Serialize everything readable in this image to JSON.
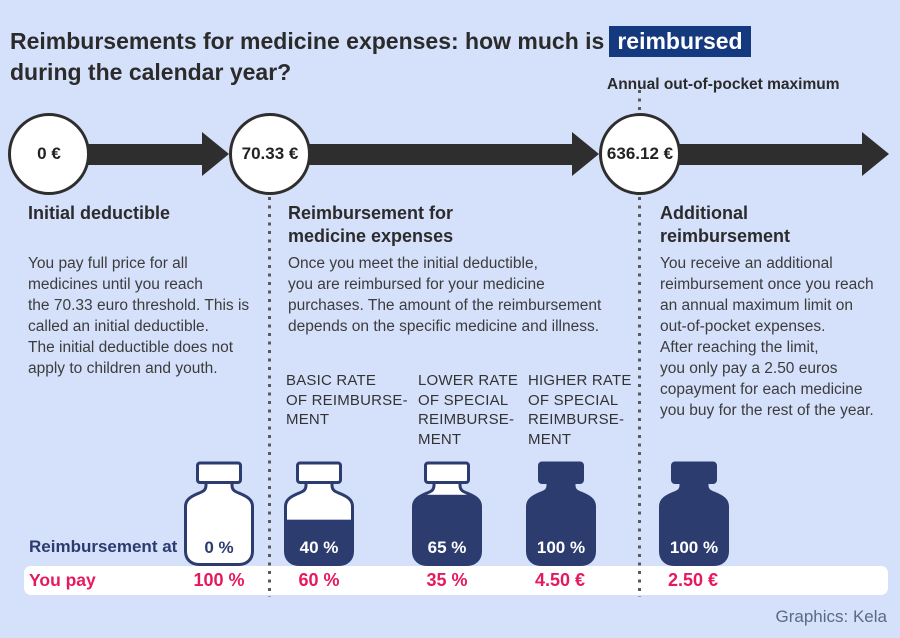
{
  "colors": {
    "bg": "#d5e0fa",
    "navy": "#2d3c6f",
    "highlight": "#15397e",
    "ink": "#2b2b2b",
    "body": "#3c3c3c",
    "pink": "#e6195e",
    "arrow": "#2e2e2e",
    "dots": "#5a5a5a",
    "credit": "#5b6a84"
  },
  "title": {
    "line1_pre": "Reimbursements for medicine expenses: how much is",
    "line1_highlight": "reimbursed",
    "line2": "during the calendar year?"
  },
  "annual_max_label": "Annual out-of-pocket maximum",
  "timeline": {
    "points": [
      "0 €",
      "70.33 €",
      "636.12 €"
    ]
  },
  "sections": [
    {
      "heading": "Initial deductible",
      "body": "You pay full price for all\nmedicines until you reach\nthe 70.33 euro threshold. This is\ncalled an initial deductible.\nThe initial deductible does not\napply to children and youth."
    },
    {
      "heading": "Reimbursement for\nmedicine expenses",
      "body": "Once you meet the initial deductible,\nyou are reimbursed for your medicine\npurchases. The amount of the reimbursement\ndepends on the specific medicine and illness."
    },
    {
      "heading": "Additional\nreimbursement",
      "body": "You receive an additional\nreimbursement once you reach\nan annual maximum limit on\nout-of-pocket expenses.\nAfter reaching the limit,\nyou only pay a 2.50 euros\ncopayment for each medicine\nyou buy for the rest of the year."
    }
  ],
  "rate_headers": [
    "BASIC RATE\nOF REIMBURSE-\nMENT",
    "LOWER RATE\nOF SPECIAL\nREIMBURSE-\nMENT",
    "HIGHER RATE\nOF SPECIAL\nREIMBURSE-\nMENT"
  ],
  "row_labels": {
    "reimbursement_at": "Reimbursement at",
    "you_pay": "You pay"
  },
  "bottles": [
    {
      "fill_level": 0,
      "reimbursement": "0 %",
      "you_pay": "100 %"
    },
    {
      "fill_level": 0.54,
      "reimbursement": "40 %",
      "you_pay": "60 %"
    },
    {
      "fill_level": 0.84,
      "reimbursement": "65 %",
      "you_pay": "35 %"
    },
    {
      "fill_level": 1,
      "reimbursement": "100 %",
      "you_pay": "4.50 €"
    },
    {
      "fill_level": 1,
      "reimbursement": "100 %",
      "you_pay": "2.50 €"
    }
  ],
  "credit": "Graphics: Kela"
}
